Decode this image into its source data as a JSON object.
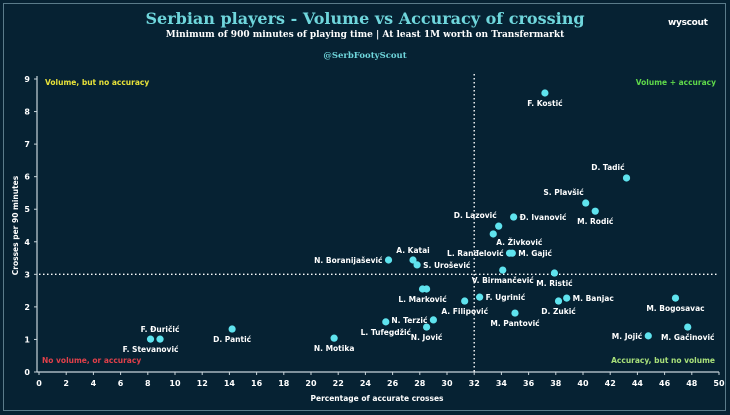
{
  "header": {
    "title": "Serbian players - Volume vs Accuracy of crossing",
    "subtitle": "Minimum of 900 minutes of playing time | At least 1M worth on Transfermarkt",
    "handle": "@SerbFootyScout",
    "brand": "wyscout"
  },
  "chart_data": {
    "type": "scatter",
    "title": "Serbian players - Volume vs Accuracy of crossing",
    "subtitle": "Minimum of 900 minutes of playing time | At least 1M worth on Transfermarkt",
    "xlabel": "Percentage of accurate crosses",
    "ylabel": "Crosses per 90 minutes",
    "xlim": [
      0,
      50
    ],
    "ylim": [
      0,
      9
    ],
    "xticks": [
      0,
      2,
      4,
      6,
      8,
      10,
      12,
      14,
      16,
      18,
      20,
      22,
      24,
      26,
      28,
      30,
      32,
      34,
      36,
      38,
      40,
      42,
      44,
      46,
      48,
      50
    ],
    "yticks": [
      0,
      1,
      2,
      3,
      4,
      5,
      6,
      7,
      8,
      9
    ],
    "grid": false,
    "reference_lines": {
      "x": 32,
      "y": 3
    },
    "point_color": "#5fe3ee",
    "quadrants": [
      {
        "label": "Volume, but no accuracy",
        "position": "top-left",
        "color": "#e8e23a"
      },
      {
        "label": "Volume + accuracy",
        "position": "top-right",
        "color": "#5fd94a"
      },
      {
        "label": "No volume, or accuracy",
        "position": "bottom-left",
        "color": "#e0404a"
      },
      {
        "label": "Accuracy, but no volume",
        "position": "bottom-right",
        "color": "#a8e07a"
      }
    ],
    "points": [
      {
        "name": "F. Kostić",
        "x": 37.2,
        "y": 8.57,
        "label_pos": "below"
      },
      {
        "name": "D. Tadić",
        "x": 43.2,
        "y": 5.96,
        "label_pos": "above-left"
      },
      {
        "name": "S. Plavšić",
        "x": 40.2,
        "y": 5.19,
        "label_pos": "above-left"
      },
      {
        "name": "M. Rodić",
        "x": 40.9,
        "y": 4.94,
        "label_pos": "below"
      },
      {
        "name": "Đ. Ivanović",
        "x": 34.9,
        "y": 4.76,
        "label_pos": "right"
      },
      {
        "name": "D. Lazović",
        "x": 33.8,
        "y": 4.48,
        "label_pos": "above-left"
      },
      {
        "name": "A. Živković",
        "x": 33.4,
        "y": 4.24,
        "label_pos": "below-right"
      },
      {
        "name": "L. Ranđelović",
        "x": 34.6,
        "y": 3.65,
        "label_pos": "left"
      },
      {
        "name": "M. Gajić",
        "x": 34.8,
        "y": 3.65,
        "label_pos": "right"
      },
      {
        "name": "A. Katai",
        "x": 27.5,
        "y": 3.44,
        "label_pos": "above"
      },
      {
        "name": "N. Boranijašević",
        "x": 25.7,
        "y": 3.44,
        "label_pos": "left"
      },
      {
        "name": "S. Urošević",
        "x": 27.8,
        "y": 3.29,
        "label_pos": "right"
      },
      {
        "name": "V. Birmančević",
        "x": 34.1,
        "y": 3.13,
        "label_pos": "below"
      },
      {
        "name": "M. Ristić",
        "x": 37.9,
        "y": 3.04,
        "label_pos": "below"
      },
      {
        "name": "L. Marković",
        "x": 28.2,
        "y": 2.55,
        "label_pos": "below"
      },
      {
        "name": "",
        "x": 28.5,
        "y": 2.55,
        "label_pos": "none"
      },
      {
        "name": "F. Ugrinić",
        "x": 32.4,
        "y": 2.3,
        "label_pos": "right"
      },
      {
        "name": "A. Filipović",
        "x": 31.3,
        "y": 2.18,
        "label_pos": "below"
      },
      {
        "name": "M. Banjac",
        "x": 38.8,
        "y": 2.27,
        "label_pos": "right"
      },
      {
        "name": "D. Zukić",
        "x": 38.2,
        "y": 2.18,
        "label_pos": "below"
      },
      {
        "name": "M. Bogosavac",
        "x": 46.8,
        "y": 2.27,
        "label_pos": "below"
      },
      {
        "name": "M. Pantović",
        "x": 35.0,
        "y": 1.81,
        "label_pos": "below"
      },
      {
        "name": "N. Terzić",
        "x": 29.0,
        "y": 1.6,
        "label_pos": "left"
      },
      {
        "name": "L. Tufegdžić",
        "x": 25.5,
        "y": 1.54,
        "label_pos": "below"
      },
      {
        "name": "N. Jović",
        "x": 28.5,
        "y": 1.38,
        "label_pos": "below"
      },
      {
        "name": "M. Gačinović",
        "x": 47.7,
        "y": 1.38,
        "label_pos": "below"
      },
      {
        "name": "M. Jojić",
        "x": 44.8,
        "y": 1.11,
        "label_pos": "left"
      },
      {
        "name": "N. Motika",
        "x": 21.7,
        "y": 1.04,
        "label_pos": "below"
      },
      {
        "name": "D. Pantić",
        "x": 14.2,
        "y": 1.32,
        "label_pos": "below"
      },
      {
        "name": "F. Stevanović",
        "x": 8.2,
        "y": 1.01,
        "label_pos": "below"
      },
      {
        "name": "F. Đuričić",
        "x": 8.9,
        "y": 1.01,
        "label_pos": "above"
      }
    ]
  }
}
